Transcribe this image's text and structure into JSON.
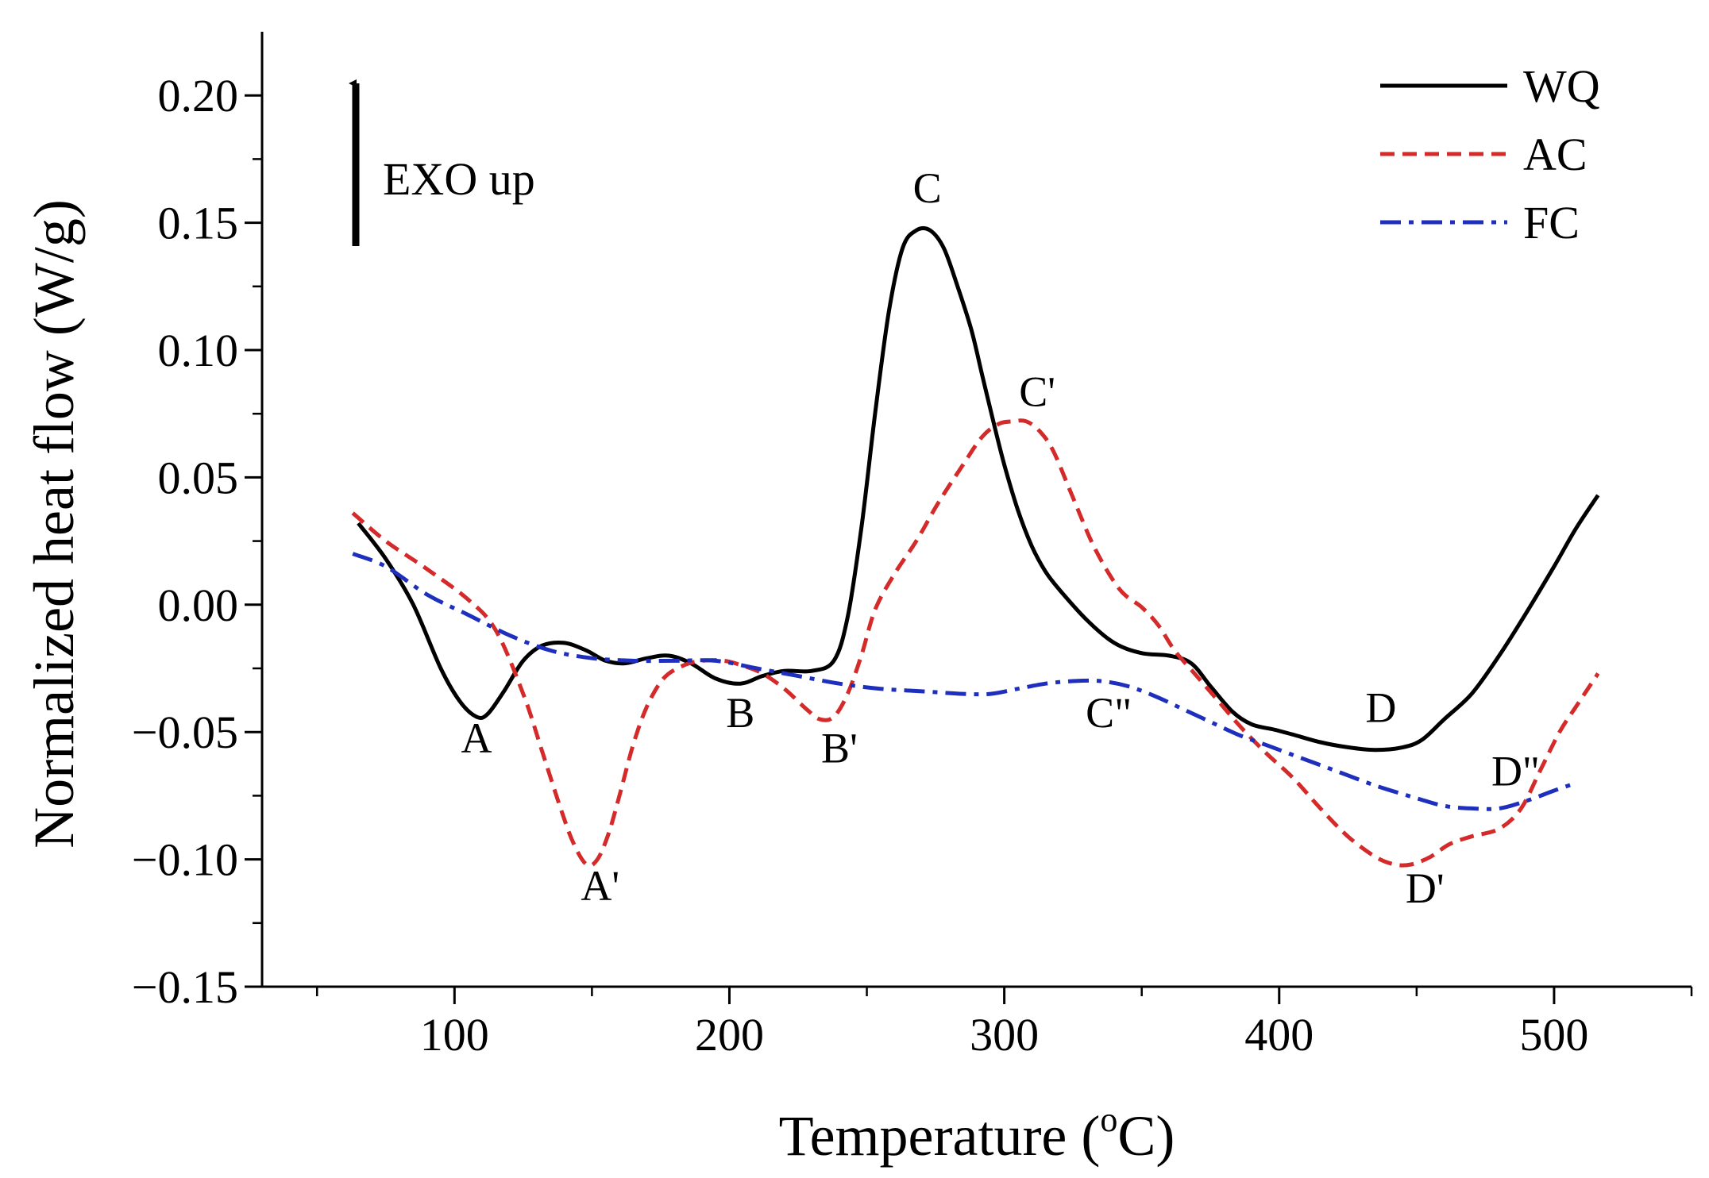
{
  "chart_data": {
    "type": "line",
    "title": "",
    "xlabel": "Temperature (",
    "xlabel_sup": "o",
    "xlabel_tail": "C)",
    "ylabel": "Normalized heat flow (W/g)",
    "xlim": [
      30,
      550
    ],
    "ylim": [
      -0.15,
      0.225
    ],
    "x_ticks": [
      100,
      200,
      300,
      400,
      500
    ],
    "x_tick_labels": [
      "100",
      "200",
      "300",
      "400",
      "500"
    ],
    "y_ticks": [
      -0.15,
      -0.1,
      -0.05,
      0.0,
      0.05,
      0.1,
      0.15,
      0.2
    ],
    "y_tick_labels": [
      "−0.15",
      "−0.10",
      "−0.05",
      "0.00",
      "0.05",
      "0.10",
      "0.15",
      "0.20"
    ],
    "legend_position": "top-right",
    "series": [
      {
        "name": "WQ",
        "color": "#000000",
        "dash": "solid",
        "x": [
          65,
          75,
          85,
          95,
          102,
          108,
          112,
          118,
          125,
          132,
          140,
          148,
          155,
          162,
          170,
          178,
          186,
          195,
          204,
          212,
          220,
          230,
          238,
          243,
          248,
          253,
          258,
          263,
          268,
          273,
          278,
          283,
          288,
          292,
          296,
          300,
          305,
          310,
          315,
          320,
          330,
          340,
          350,
          360,
          368,
          375,
          383,
          390,
          398,
          405,
          415,
          425,
          435,
          445,
          452,
          460,
          470,
          480,
          490,
          500,
          508,
          516
        ],
        "y": [
          0.032,
          0.018,
          0.0,
          -0.025,
          -0.038,
          -0.044,
          -0.043,
          -0.034,
          -0.022,
          -0.016,
          -0.015,
          -0.018,
          -0.022,
          -0.023,
          -0.021,
          -0.02,
          -0.023,
          -0.029,
          -0.031,
          -0.028,
          -0.026,
          -0.026,
          -0.022,
          -0.005,
          0.03,
          0.075,
          0.115,
          0.14,
          0.147,
          0.147,
          0.14,
          0.125,
          0.108,
          0.09,
          0.072,
          0.055,
          0.037,
          0.023,
          0.013,
          0.006,
          -0.006,
          -0.015,
          -0.019,
          -0.02,
          -0.023,
          -0.032,
          -0.042,
          -0.047,
          -0.049,
          -0.051,
          -0.054,
          -0.056,
          -0.057,
          -0.056,
          -0.053,
          -0.045,
          -0.035,
          -0.02,
          -0.003,
          0.015,
          0.03,
          0.043
        ]
      },
      {
        "name": "AC",
        "color": "#d42a2a",
        "dash": "dashed",
        "x": [
          63,
          75,
          90,
          105,
          115,
          125,
          132,
          138,
          143,
          148,
          152,
          156,
          160,
          165,
          170,
          176,
          183,
          190,
          198,
          205,
          212,
          220,
          228,
          233,
          238,
          243,
          248,
          253,
          260,
          268,
          276,
          285,
          292,
          298,
          303,
          308,
          313,
          318,
          325,
          333,
          342,
          350,
          356,
          362,
          370,
          378,
          386,
          395,
          405,
          415,
          425,
          435,
          442,
          448,
          455,
          462,
          470,
          480,
          488,
          495,
          502,
          508,
          516
        ],
        "y": [
          0.036,
          0.025,
          0.014,
          0.002,
          -0.01,
          -0.035,
          -0.058,
          -0.078,
          -0.093,
          -0.102,
          -0.1,
          -0.09,
          -0.075,
          -0.055,
          -0.04,
          -0.029,
          -0.024,
          -0.022,
          -0.022,
          -0.024,
          -0.027,
          -0.033,
          -0.041,
          -0.045,
          -0.044,
          -0.035,
          -0.02,
          -0.002,
          0.012,
          0.025,
          0.04,
          0.055,
          0.066,
          0.071,
          0.072,
          0.072,
          0.068,
          0.06,
          0.042,
          0.022,
          0.006,
          -0.001,
          -0.008,
          -0.018,
          -0.028,
          -0.038,
          -0.048,
          -0.058,
          -0.068,
          -0.08,
          -0.091,
          -0.099,
          -0.102,
          -0.102,
          -0.099,
          -0.094,
          -0.091,
          -0.088,
          -0.08,
          -0.065,
          -0.05,
          -0.04,
          -0.027
        ]
      },
      {
        "name": "FC",
        "color": "#1f2fbd",
        "dash": "dashdot",
        "x": [
          63,
          75,
          90,
          105,
          120,
          135,
          150,
          165,
          180,
          195,
          210,
          225,
          240,
          255,
          270,
          285,
          295,
          305,
          315,
          325,
          335,
          345,
          355,
          365,
          375,
          385,
          395,
          405,
          420,
          435,
          450,
          460,
          470,
          480,
          490,
          500,
          508
        ],
        "y": [
          0.02,
          0.015,
          0.004,
          -0.004,
          -0.012,
          -0.018,
          -0.021,
          -0.022,
          -0.022,
          -0.022,
          -0.025,
          -0.028,
          -0.031,
          -0.033,
          -0.034,
          -0.035,
          -0.035,
          -0.033,
          -0.031,
          -0.03,
          -0.03,
          -0.032,
          -0.036,
          -0.041,
          -0.046,
          -0.051,
          -0.055,
          -0.059,
          -0.065,
          -0.071,
          -0.076,
          -0.079,
          -0.08,
          -0.08,
          -0.077,
          -0.073,
          -0.07
        ]
      }
    ],
    "annotations": [
      {
        "text": "A",
        "x": 108,
        "y": -0.058
      },
      {
        "text": "A'",
        "x": 153,
        "y": -0.116
      },
      {
        "text": "B",
        "x": 204,
        "y": -0.048
      },
      {
        "text": "B'",
        "x": 240,
        "y": -0.062
      },
      {
        "text": "C",
        "x": 272,
        "y": 0.158
      },
      {
        "text": "C'",
        "x": 312,
        "y": 0.078
      },
      {
        "text": "C\"",
        "x": 338,
        "y": -0.048
      },
      {
        "text": "D",
        "x": 437,
        "y": -0.046
      },
      {
        "text": "D'",
        "x": 453,
        "y": -0.117
      },
      {
        "text": "D\"",
        "x": 486,
        "y": -0.071
      }
    ],
    "exo_label": "EXO up"
  }
}
